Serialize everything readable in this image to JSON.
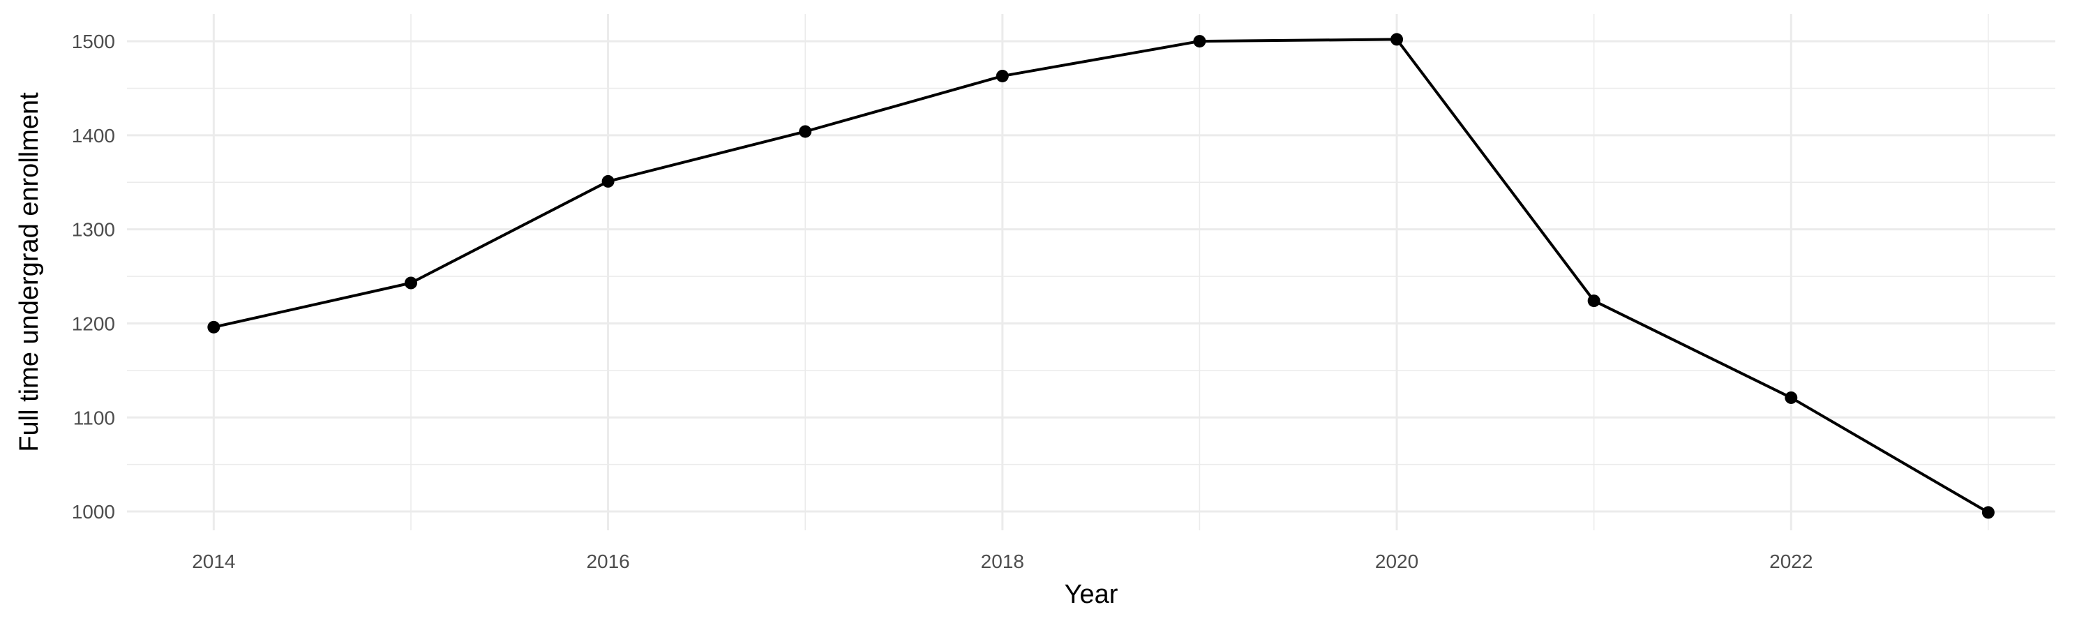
{
  "chart_data": {
    "type": "line",
    "title": "",
    "xlabel": "Year",
    "ylabel": "Full time undergrad enrollment",
    "x": [
      2014,
      2015,
      2016,
      2017,
      2018,
      2019,
      2020,
      2021,
      2022,
      2023
    ],
    "series": [
      {
        "values": [
          1196,
          1243,
          1351,
          1404,
          1463,
          1500,
          1502,
          1224,
          1121,
          999
        ],
        "color": "#000000"
      }
    ],
    "xlim": [
      2013.56,
      2023.34
    ],
    "ylim": [
      980,
      1529
    ],
    "x_ticks": [
      2014,
      2016,
      2018,
      2020,
      2022
    ],
    "x_tick_labels": [
      "2014",
      "2016",
      "2018",
      "2020",
      "2022"
    ],
    "y_ticks": [
      1000,
      1100,
      1200,
      1300,
      1400,
      1500
    ],
    "y_tick_labels": [
      "1000",
      "1100",
      "1200",
      "1300",
      "1400",
      "1500"
    ],
    "grid": true,
    "markers": true,
    "gridline_color": "#ebebeb"
  }
}
